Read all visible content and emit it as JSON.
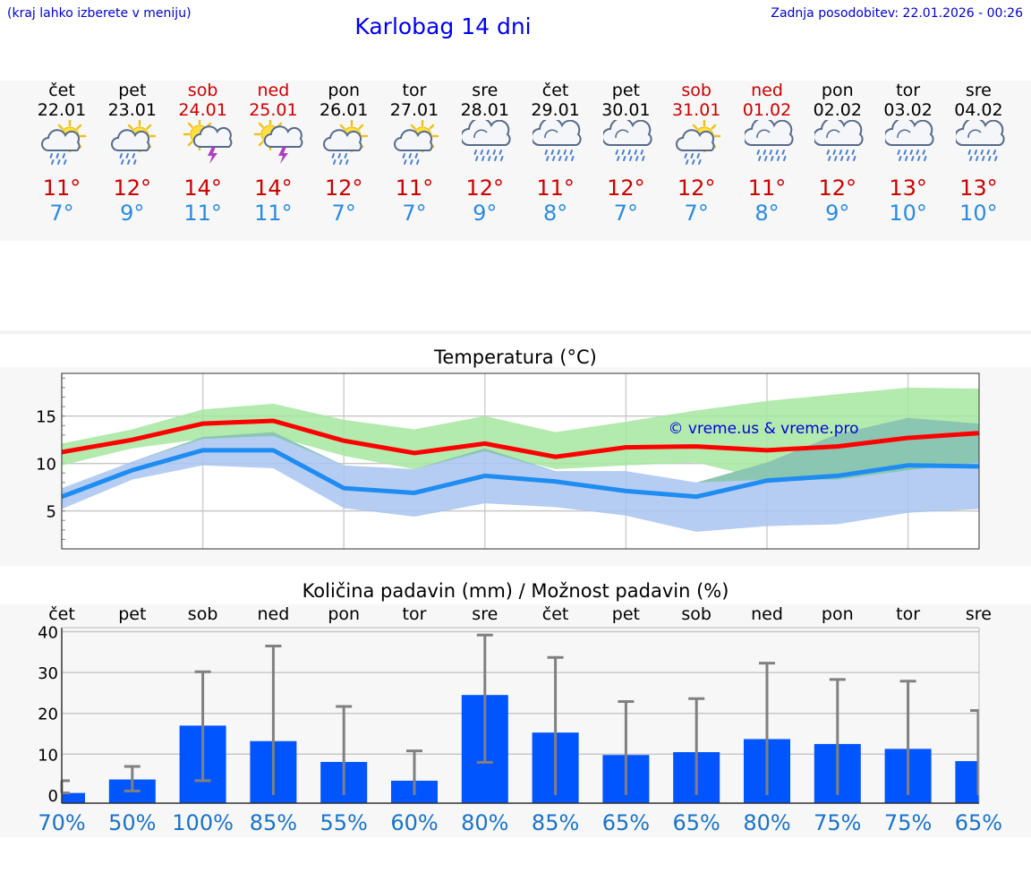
{
  "header": {
    "left_note": "(kraj lahko izberete v meniju)",
    "title": "Karlobag 14 dni",
    "updated": "Zadnja posodobitev: 22.01.2026 - 00:26"
  },
  "days": [
    {
      "name": "čet",
      "date": "22.01",
      "weekend": false,
      "icon": "sun-cloud-rain-icon",
      "tmax": "11°",
      "tmin": "7°"
    },
    {
      "name": "pet",
      "date": "23.01",
      "weekend": false,
      "icon": "sun-cloud-rain-icon",
      "tmax": "12°",
      "tmin": "9°"
    },
    {
      "name": "sob",
      "date": "24.01",
      "weekend": true,
      "icon": "sun-cloud-thunder-icon",
      "tmax": "14°",
      "tmin": "11°"
    },
    {
      "name": "ned",
      "date": "25.01",
      "weekend": true,
      "icon": "sun-cloud-thunder-icon",
      "tmax": "14°",
      "tmin": "11°"
    },
    {
      "name": "pon",
      "date": "26.01",
      "weekend": false,
      "icon": "sun-cloud-rain-icon",
      "tmax": "12°",
      "tmin": "7°"
    },
    {
      "name": "tor",
      "date": "27.01",
      "weekend": false,
      "icon": "sun-cloud-rain-icon",
      "tmax": "11°",
      "tmin": "7°"
    },
    {
      "name": "sre",
      "date": "28.01",
      "weekend": false,
      "icon": "cloud-rain-icon",
      "tmax": "12°",
      "tmin": "9°"
    },
    {
      "name": "čet",
      "date": "29.01",
      "weekend": false,
      "icon": "cloud-rain-icon",
      "tmax": "11°",
      "tmin": "8°"
    },
    {
      "name": "pet",
      "date": "30.01",
      "weekend": false,
      "icon": "cloud-rain-icon",
      "tmax": "12°",
      "tmin": "7°"
    },
    {
      "name": "sob",
      "date": "31.01",
      "weekend": true,
      "icon": "sun-cloud-rain-icon",
      "tmax": "12°",
      "tmin": "7°"
    },
    {
      "name": "ned",
      "date": "01.02",
      "weekend": true,
      "icon": "cloud-rain-icon",
      "tmax": "11°",
      "tmin": "8°"
    },
    {
      "name": "pon",
      "date": "02.02",
      "weekend": false,
      "icon": "cloud-rain-icon",
      "tmax": "12°",
      "tmin": "9°"
    },
    {
      "name": "tor",
      "date": "03.02",
      "weekend": false,
      "icon": "cloud-rain-icon",
      "tmax": "13°",
      "tmin": "10°"
    },
    {
      "name": "sre",
      "date": "04.02",
      "weekend": false,
      "icon": "cloud-rain-icon",
      "tmax": "13°",
      "tmin": "10°"
    }
  ],
  "colors": {
    "max_line": "#ff0000",
    "min_line": "#1e8cf0",
    "max_band": "#a6e6a0",
    "min_band": "#a8c4f0",
    "overlap_band": "#7cc49a",
    "precip_bar": "#0055ff",
    "error_bar": "#808080",
    "pct_text": "#1a73c8",
    "watermark": "#0000dd"
  },
  "chart_data": [
    {
      "type": "line",
      "title": "Temperatura (°C)",
      "watermark": "© vreme.us & vreme.pro",
      "x": [
        0,
        1,
        2,
        3,
        4,
        5,
        6,
        7,
        8,
        9,
        10,
        11,
        12,
        13
      ],
      "ylim": [
        1,
        19.5
      ],
      "yticks": [
        5,
        10,
        15
      ],
      "series": [
        {
          "name": "max",
          "values": [
            11.2,
            12.5,
            14.2,
            14.5,
            12.4,
            11.1,
            12.1,
            10.7,
            11.7,
            11.8,
            11.4,
            11.8,
            12.7,
            13.2
          ],
          "band_low": [
            9.8,
            11.6,
            12.6,
            12.9,
            10.8,
            9.4,
            11.3,
            9.4,
            9.8,
            10.1,
            8.3,
            8.3,
            9.3,
            10.1
          ],
          "band_high": [
            12.1,
            13.6,
            15.7,
            16.3,
            14.6,
            13.6,
            15.0,
            13.3,
            14.4,
            15.6,
            16.6,
            17.3,
            18.0,
            17.9
          ]
        },
        {
          "name": "min",
          "values": [
            6.5,
            9.3,
            11.4,
            11.4,
            7.4,
            6.9,
            8.7,
            8.1,
            7.1,
            6.5,
            8.2,
            8.7,
            9.8,
            9.7
          ],
          "band_low": [
            5.2,
            8.3,
            9.8,
            9.5,
            5.3,
            4.4,
            5.8,
            5.4,
            4.5,
            2.8,
            3.4,
            3.6,
            4.8,
            5.2
          ],
          "band_high": [
            7.4,
            10.2,
            12.8,
            13.3,
            9.8,
            9.4,
            11.6,
            9.2,
            9.2,
            8.0,
            10.1,
            13.1,
            14.8,
            14.2
          ]
        }
      ]
    },
    {
      "type": "bar",
      "title": "Količina padavin (mm) / Možnost padavin (%)",
      "categories": [
        "čet",
        "pet",
        "sob",
        "ned",
        "pon",
        "tor",
        "sre",
        "čet",
        "pet",
        "sob",
        "ned",
        "pon",
        "tor",
        "sre"
      ],
      "ylim": [
        -2,
        41
      ],
      "yticks": [
        0,
        10,
        20,
        30,
        40
      ],
      "values": [
        0.5,
        3.8,
        17.0,
        13.2,
        8.1,
        3.5,
        24.5,
        15.3,
        9.8,
        10.5,
        13.7,
        12.5,
        11.3,
        8.3
      ],
      "err_low": [
        0.5,
        1.0,
        3.5,
        0,
        0,
        0,
        8.0,
        0,
        0,
        0,
        0,
        0,
        0,
        0
      ],
      "err_high": [
        3.5,
        7.0,
        30.2,
        36.5,
        21.7,
        10.8,
        39.2,
        33.7,
        22.9,
        23.6,
        32.3,
        28.3,
        27.9,
        20.7
      ],
      "probability": [
        "70%",
        "50%",
        "100%",
        "85%",
        "55%",
        "60%",
        "80%",
        "85%",
        "65%",
        "65%",
        "80%",
        "75%",
        "75%",
        "65%"
      ]
    }
  ]
}
